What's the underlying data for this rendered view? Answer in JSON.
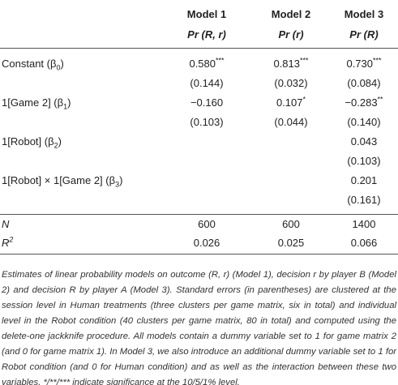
{
  "table": {
    "columns": [
      {
        "model": "Model 1",
        "outcome": "Pr (R, r)"
      },
      {
        "model": "Model 2",
        "outcome": "Pr (r)"
      },
      {
        "model": "Model 3",
        "outcome": "Pr (R)"
      }
    ],
    "rows": [
      {
        "label": {
          "pre": "Constant (β",
          "sub": "0",
          "post": ")"
        },
        "cells": [
          {
            "value": "0.580",
            "stars": "***"
          },
          {
            "value": "0.813",
            "stars": "***"
          },
          {
            "value": "0.730",
            "stars": "***"
          }
        ]
      },
      {
        "cells": [
          {
            "value": "(0.144)"
          },
          {
            "value": "(0.032)"
          },
          {
            "value": "(0.084)"
          }
        ]
      },
      {
        "label": {
          "pre": "1[Game 2] (β",
          "sub": "1",
          "post": ")"
        },
        "cells": [
          {
            "value": "−0.160"
          },
          {
            "value": "0.107",
            "stars": "*"
          },
          {
            "value": "−0.283",
            "stars": "**"
          }
        ]
      },
      {
        "cells": [
          {
            "value": "(0.103)"
          },
          {
            "value": "(0.044)"
          },
          {
            "value": "(0.140)"
          }
        ]
      },
      {
        "label": {
          "pre": "1[Robot] (β",
          "sub": "2",
          "post": ")"
        },
        "cells": [
          null,
          null,
          {
            "value": "0.043"
          }
        ]
      },
      {
        "cells": [
          null,
          null,
          {
            "value": "(0.103)"
          }
        ]
      },
      {
        "label": {
          "pre": "1[Robot] × 1[Game 2] (β",
          "sub": "3",
          "post": ")"
        },
        "cells": [
          null,
          null,
          {
            "value": "0.201"
          }
        ]
      },
      {
        "cells": [
          null,
          null,
          {
            "value": "(0.161)"
          }
        ]
      }
    ],
    "stats": [
      {
        "label": {
          "pre": "N"
        },
        "cells": [
          {
            "value": "600"
          },
          {
            "value": "600"
          },
          {
            "value": "1400"
          }
        ]
      },
      {
        "label": {
          "pre": "R",
          "sup": "2"
        },
        "cells": [
          {
            "value": "0.026"
          },
          {
            "value": "0.025"
          },
          {
            "value": "0.066"
          }
        ]
      }
    ]
  },
  "caption": "Estimates of linear probability models on outcome (R, r) (Model 1), decision r by player B (Model 2) and decision R by player A (Model 3). Standard errors (in parentheses) are clustered at the session level in Human treatments (three clusters per game matrix, six in total) and individual level in the Robot condition (40 clusters per game matrix, 80 in total) and computed using the delete-one jackknife procedure. All models contain a dummy variable set to 1 for game matrix 2 (and 0 for game matrix 1). In Model 3, we also introduce an additional dummy variable set to 1 for Robot condition (and 0 for Human condition) and as well as the interaction between these two variables. */**/*** indicate significance at the 10/5/1% level."
}
